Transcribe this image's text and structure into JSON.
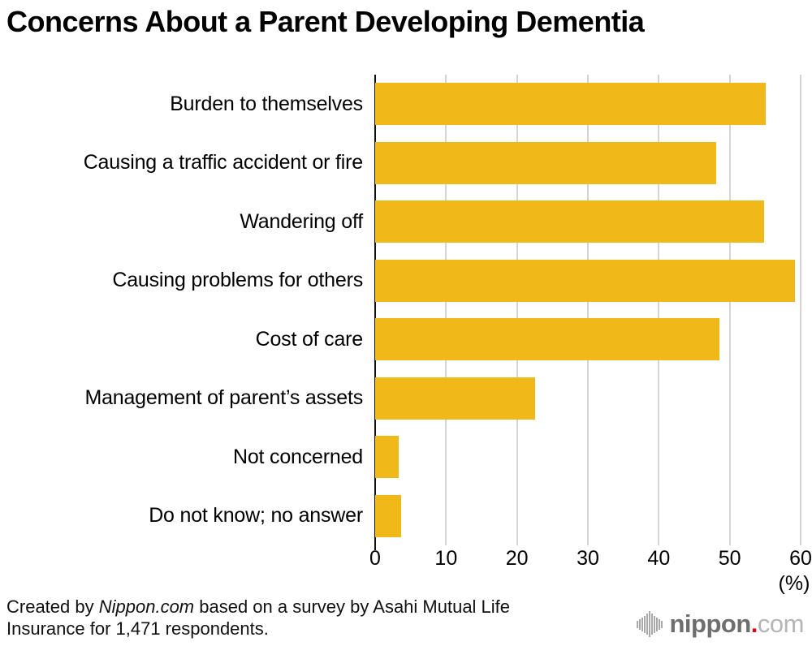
{
  "title": "Concerns About a Parent Developing Dementia",
  "chart_data": {
    "type": "bar",
    "orientation": "horizontal",
    "title": "Concerns About a Parent Developing Dementia",
    "categories": [
      "Burden to themselves",
      "Causing a traffic accident or fire",
      "Wandering off",
      "Causing problems for others",
      "Cost of care",
      "Management of parent’s assets",
      "Not concerned",
      "Do not know; no answer"
    ],
    "values": [
      55.1,
      48.1,
      54.8,
      59.2,
      48.5,
      22.6,
      3.3,
      3.7
    ],
    "xlabel": "(%)",
    "ylabel": "",
    "xlim": [
      0,
      60
    ],
    "xticks": [
      0,
      10,
      20,
      30,
      40,
      50,
      60
    ],
    "grid": true,
    "legend": false,
    "bar_color": "#F0B818",
    "gridline_color": "#d4d4d4",
    "axis_color": "#111111"
  },
  "footer": {
    "prefix": "Created by ",
    "source": "Nippon.com",
    "suffix": " based on a survey by Asahi Mutual Life Insurance for 1,471 respondents."
  },
  "logo": {
    "icon": "soundwave-bars-icon",
    "name": "nippon",
    "dot": ".",
    "tld": "com",
    "dot_color": "#e60012"
  }
}
